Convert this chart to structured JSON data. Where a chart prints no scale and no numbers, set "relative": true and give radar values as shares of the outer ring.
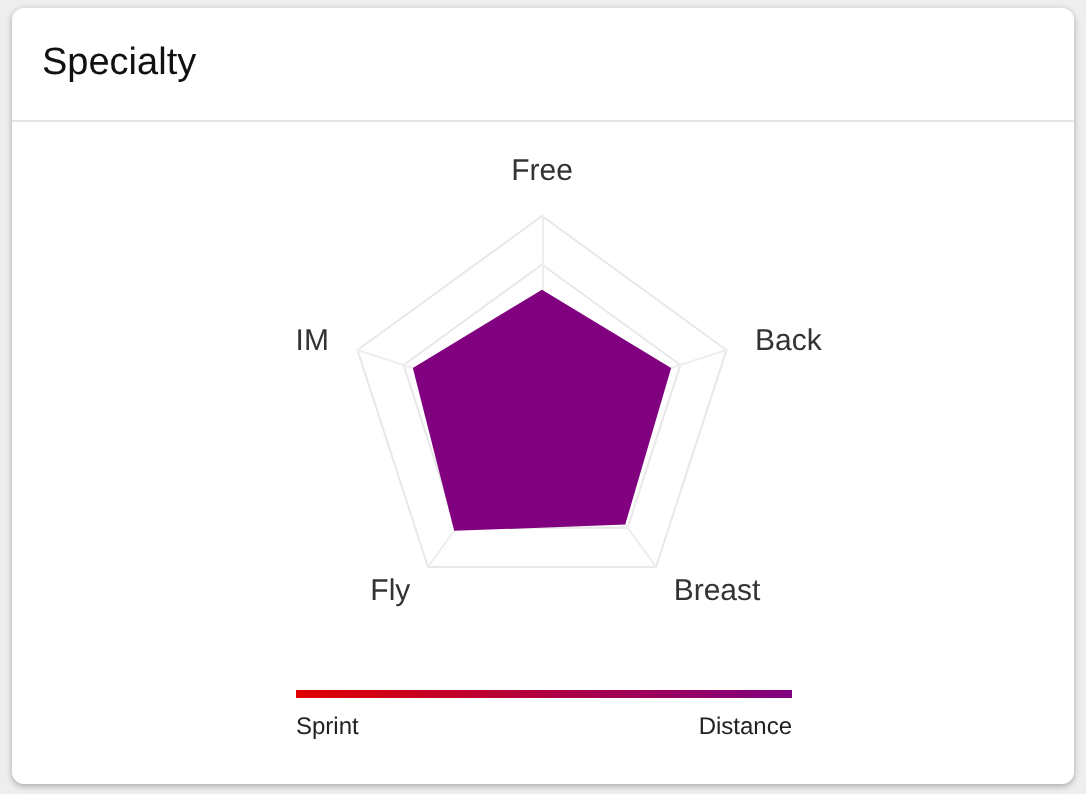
{
  "chart_data": {
    "type": "radar",
    "title": "Specialty",
    "relative": true,
    "categories": [
      "Free",
      "Back",
      "Breast",
      "Fly",
      "IM"
    ],
    "series": [
      {
        "color": "#800080",
        "values": [
          0.62,
          0.7,
          0.73,
          0.77,
          0.7
        ]
      }
    ],
    "annotations": [
      "Sprint",
      "Distance"
    ],
    "grid": true
  }
}
